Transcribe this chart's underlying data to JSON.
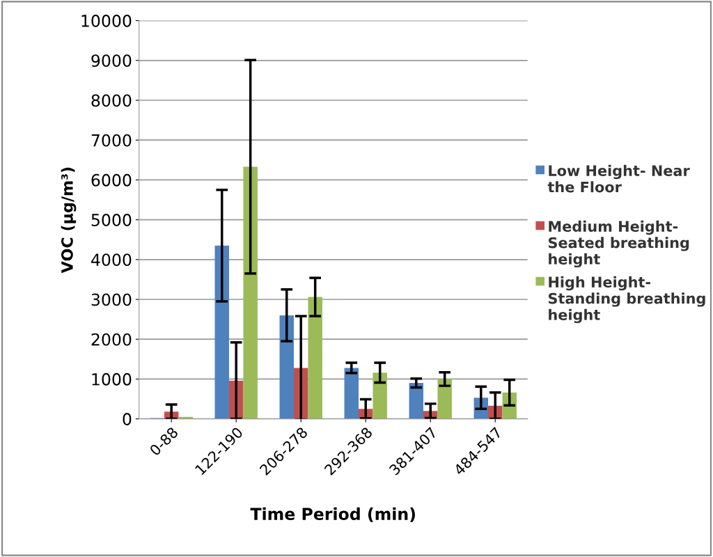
{
  "chart_data": {
    "type": "bar",
    "xlabel": "Time Period (min)",
    "ylabel": "VOC (µg/m³)",
    "categories": [
      "0-88",
      "122-190",
      "206-278",
      "292-368",
      "381-407",
      "484-547"
    ],
    "series": [
      {
        "name": "Low Height- Near the Floor",
        "color": "#4f81bd",
        "values": [
          20,
          4350,
          2600,
          1280,
          900,
          530
        ],
        "errors": [
          null,
          1400,
          650,
          130,
          110,
          280
        ]
      },
      {
        "name": "Medium Height- Seated breathing height",
        "color": "#c0504d",
        "values": [
          180,
          960,
          1280,
          250,
          200,
          330
        ],
        "errors": [
          180,
          960,
          1300,
          240,
          180,
          330
        ]
      },
      {
        "name": "High Height- Standing breathing height",
        "color": "#9bbb59",
        "values": [
          50,
          6330,
          3060,
          1160,
          1000,
          660
        ],
        "errors": [
          null,
          2680,
          480,
          250,
          170,
          320
        ]
      }
    ],
    "ylim": [
      0,
      10000
    ],
    "yticks": [
      0,
      1000,
      2000,
      3000,
      4000,
      5000,
      6000,
      7000,
      8000,
      9000,
      10000
    ],
    "grid": "y",
    "legend": "right"
  }
}
